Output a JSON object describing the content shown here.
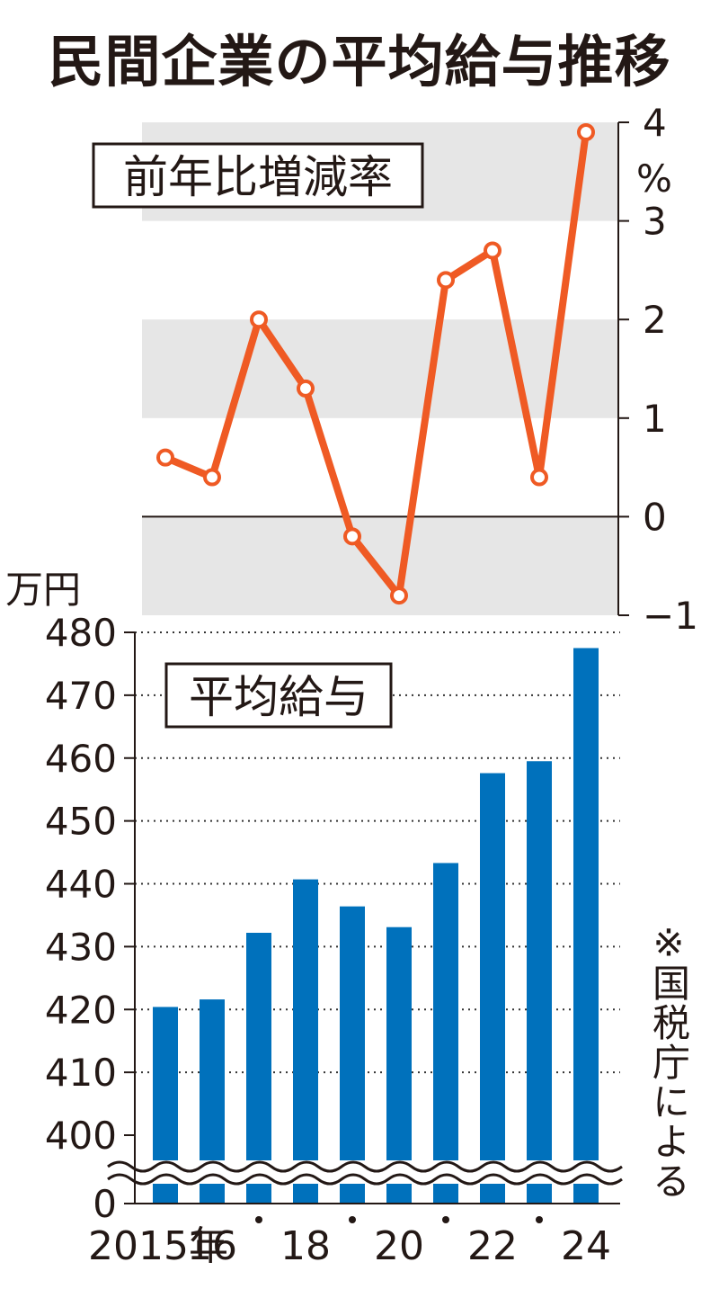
{
  "title": "民間企業の平均給与推移",
  "source_note": "※国税庁による",
  "colors": {
    "line": "#ef5a24",
    "bar": "#0071bc",
    "band": "#e6e6e6",
    "text": "#231815"
  },
  "chart_data": [
    {
      "type": "line",
      "label": "前年比増減率",
      "yunit": "%",
      "x": [
        2015,
        2016,
        2017,
        2018,
        2019,
        2020,
        2021,
        2022,
        2023,
        2024
      ],
      "values": [
        0.6,
        0.4,
        2.0,
        1.3,
        -0.2,
        -0.8,
        2.4,
        2.7,
        0.4,
        3.9
      ],
      "ylim": [
        -1,
        4
      ],
      "yticks": [
        "-1",
        "0",
        "1",
        "2",
        "3",
        "4"
      ],
      "axis_position": "right",
      "grid": "alternating bands"
    },
    {
      "type": "bar",
      "label": "平均給与",
      "yunit": "万円",
      "x": [
        2015,
        2016,
        2017,
        2018,
        2019,
        2020,
        2021,
        2022,
        2023,
        2024
      ],
      "xtick_labels": [
        "2015年",
        "16",
        "",
        "18",
        "",
        "20",
        "",
        "22",
        "",
        "24"
      ],
      "values": [
        420.4,
        421.6,
        432.2,
        440.7,
        436.4,
        433.1,
        443.3,
        457.6,
        459.5,
        477.5
      ],
      "ylim": [
        400,
        480
      ],
      "yticks": [
        "0",
        "400",
        "410",
        "420",
        "430",
        "440",
        "450",
        "460",
        "470",
        "480"
      ],
      "axis_break": "between 0 and 400",
      "grid": "dotted horizontal"
    }
  ]
}
